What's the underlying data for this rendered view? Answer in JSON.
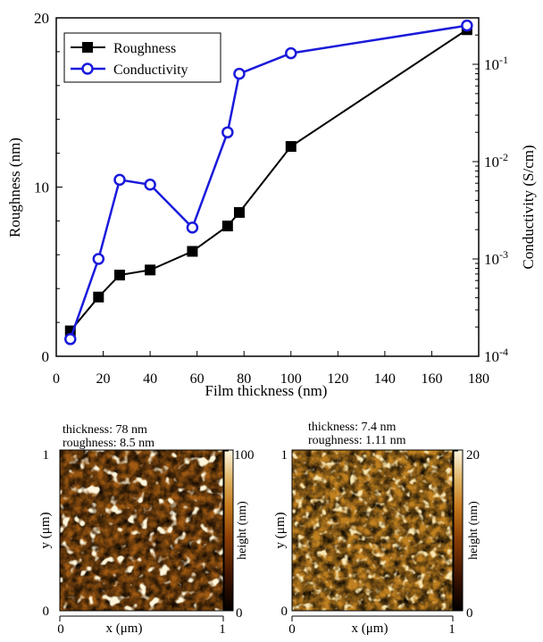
{
  "chart_data": [
    {
      "type": "line",
      "title": "",
      "xlabel": "Film thickness (nm)",
      "ylabel": "Roughness (nm)",
      "y2label": "Conductivity (S/cm)",
      "xlim": [
        0,
        180
      ],
      "ylim": [
        0,
        20
      ],
      "y2lim": [
        0.0001,
        0.3
      ],
      "y2scale": "log",
      "x_ticks": [
        0,
        20,
        40,
        60,
        80,
        100,
        120,
        140,
        160,
        180
      ],
      "y_ticks": [
        0,
        10,
        20
      ],
      "y2_ticks": [
        {
          "value": 0.0001,
          "base": "10",
          "exp": "-4"
        },
        {
          "value": 0.001,
          "base": "10",
          "exp": "-3"
        },
        {
          "value": 0.01,
          "base": "10",
          "exp": "-2"
        },
        {
          "value": 0.1,
          "base": "10",
          "exp": "-1"
        }
      ],
      "legend_position": "top-left",
      "series": [
        {
          "name": "Roughness",
          "axis": "left",
          "color": "#000000",
          "marker": "filled-square",
          "x": [
            6,
            18,
            27,
            40,
            58,
            73,
            78,
            100,
            175
          ],
          "y": [
            1.5,
            3.5,
            4.8,
            5.1,
            6.2,
            7.7,
            8.5,
            12.4,
            19.3
          ]
        },
        {
          "name": "Conductivity",
          "axis": "right",
          "color": "#1a1adb",
          "marker": "open-circle",
          "x": [
            6,
            18,
            27,
            40,
            58,
            73,
            78,
            100,
            175
          ],
          "y": [
            0.00015,
            0.001,
            0.0065,
            0.0058,
            0.0021,
            0.02,
            0.08,
            0.13,
            0.25
          ]
        }
      ]
    },
    {
      "type": "heatmap",
      "annotation_line1": "thickness: 78 nm",
      "annotation_line2": "roughness: 8.5 nm",
      "xlabel": "x (μm)",
      "ylabel": "y (μm)",
      "colorbar_label": "height (nm)",
      "x_ticks": [
        "0",
        "1"
      ],
      "y_ticks": [
        "0",
        "1"
      ],
      "colorbar_ticks": [
        "0",
        "100"
      ],
      "colorbar_range": [
        0,
        100
      ]
    },
    {
      "type": "heatmap",
      "annotation_line1": "thickness: 7.4 nm",
      "annotation_line2": "roughness: 1.11 nm",
      "xlabel": "x (μm)",
      "ylabel": "y (μm)",
      "colorbar_label": "height (nm)",
      "x_ticks": [
        "0",
        "1"
      ],
      "y_ticks": [
        "0",
        "1"
      ],
      "colorbar_ticks": [
        "0",
        "20"
      ],
      "colorbar_range": [
        0,
        20
      ]
    }
  ]
}
